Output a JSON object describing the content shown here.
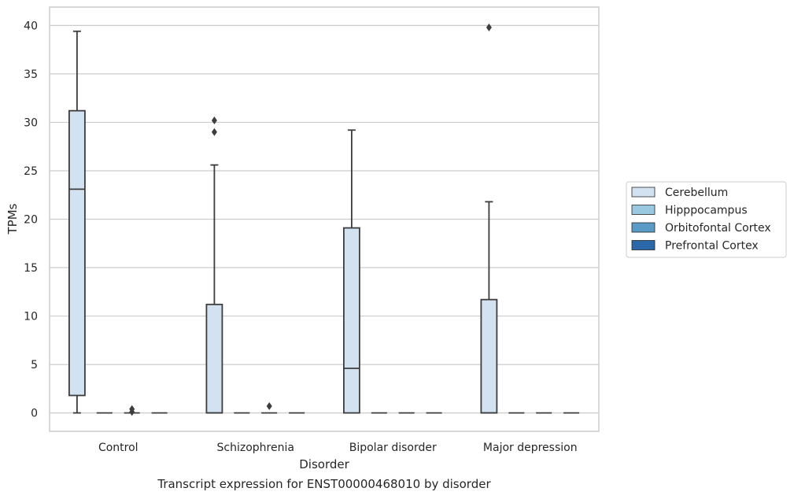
{
  "chart_data": {
    "type": "box",
    "title": "",
    "xlabel": "Disorder",
    "ylabel": "TPMs",
    "caption": "Transcript expression for ENST00000468010 by disorder",
    "categories": [
      "Control",
      "Schizophrenia",
      "Bipolar disorder",
      "Major depression"
    ],
    "ylim": [
      -1.9,
      41.9
    ],
    "yticks": [
      0,
      5,
      10,
      15,
      20,
      25,
      30,
      35,
      40
    ],
    "grid": true,
    "legend_position": "right",
    "series": [
      {
        "name": "Cerebellum",
        "color": "#d3e2f0",
        "boxes": [
          {
            "whisker_low": 0,
            "q1": 1.8,
            "median": 23.1,
            "q3": 31.2,
            "whisker_high": 39.4,
            "outliers": []
          },
          {
            "whisker_low": 0,
            "q1": 0,
            "median": 0,
            "q3": 11.2,
            "whisker_high": 25.6,
            "outliers": [
              29.0,
              30.2
            ]
          },
          {
            "whisker_low": 0,
            "q1": 0,
            "median": 4.6,
            "q3": 19.1,
            "whisker_high": 29.2,
            "outliers": []
          },
          {
            "whisker_low": 0,
            "q1": 0,
            "median": 0,
            "q3": 11.7,
            "whisker_high": 21.8,
            "outliers": [
              39.8
            ]
          }
        ]
      },
      {
        "name": "Hipppocampus",
        "color": "#9ac8e0",
        "boxes": [
          {
            "whisker_low": 0,
            "q1": 0,
            "median": 0,
            "q3": 0,
            "whisker_high": 0,
            "outliers": []
          },
          {
            "whisker_low": 0,
            "q1": 0,
            "median": 0,
            "q3": 0,
            "whisker_high": 0,
            "outliers": []
          },
          {
            "whisker_low": 0,
            "q1": 0,
            "median": 0,
            "q3": 0,
            "whisker_high": 0,
            "outliers": []
          },
          {
            "whisker_low": 0,
            "q1": 0,
            "median": 0,
            "q3": 0,
            "whisker_high": 0,
            "outliers": []
          }
        ]
      },
      {
        "name": "Orbitofontal Cortex",
        "color": "#5a9ac6",
        "boxes": [
          {
            "whisker_low": 0,
            "q1": 0,
            "median": 0,
            "q3": 0,
            "whisker_high": 0,
            "outliers": [
              0.1,
              0.4
            ]
          },
          {
            "whisker_low": 0,
            "q1": 0,
            "median": 0,
            "q3": 0,
            "whisker_high": 0,
            "outliers": [
              0.7
            ]
          },
          {
            "whisker_low": 0,
            "q1": 0,
            "median": 0,
            "q3": 0,
            "whisker_high": 0,
            "outliers": []
          },
          {
            "whisker_low": 0,
            "q1": 0,
            "median": 0,
            "q3": 0,
            "whisker_high": 0,
            "outliers": []
          }
        ]
      },
      {
        "name": "Prefrontal Cortex",
        "color": "#2a68a8",
        "boxes": [
          {
            "whisker_low": 0,
            "q1": 0,
            "median": 0,
            "q3": 0,
            "whisker_high": 0,
            "outliers": []
          },
          {
            "whisker_low": 0,
            "q1": 0,
            "median": 0,
            "q3": 0,
            "whisker_high": 0,
            "outliers": []
          },
          {
            "whisker_low": 0,
            "q1": 0,
            "median": 0,
            "q3": 0,
            "whisker_high": 0,
            "outliers": []
          },
          {
            "whisker_low": 0,
            "q1": 0,
            "median": 0,
            "q3": 0,
            "whisker_high": 0,
            "outliers": []
          }
        ]
      }
    ]
  }
}
